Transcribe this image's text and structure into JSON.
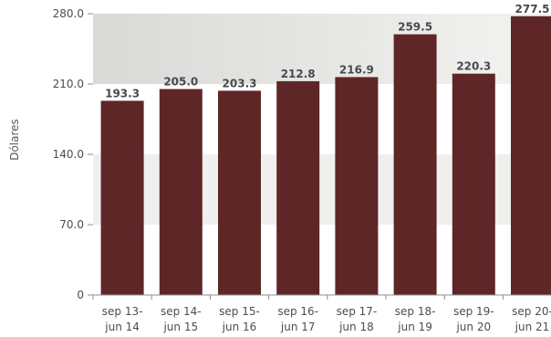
{
  "colors": {
    "bar": "#5f2628",
    "band_light": "#efefee",
    "band_gradient_start": "#d9d9d7",
    "band_gradient_end": "#f3f3f1",
    "axis": "#8c8c8c",
    "text": "#4d4d4d"
  },
  "chart_data": {
    "type": "bar",
    "title": "",
    "xlabel": "",
    "ylabel": "Dólares",
    "categories": [
      [
        "sep 13-",
        "jun 14"
      ],
      [
        "sep 14-",
        "jun 15"
      ],
      [
        "sep 15-",
        "jun 16"
      ],
      [
        "sep 16-",
        "jun 17"
      ],
      [
        "sep 17-",
        "jun 18"
      ],
      [
        "sep 18-",
        "jun 19"
      ],
      [
        "sep 19-",
        "jun 20"
      ],
      [
        "sep 20-",
        "jun 21"
      ]
    ],
    "values": [
      193.3,
      205.0,
      203.3,
      212.8,
      216.9,
      259.5,
      220.3,
      277.5
    ],
    "value_labels": [
      "193.3",
      "205.0",
      "203.3",
      "212.8",
      "216.9",
      "259.5",
      "220.3",
      "277.5"
    ],
    "ylim": [
      0,
      280
    ],
    "yticks": [
      0,
      70,
      140,
      210,
      280
    ],
    "ytick_labels": [
      "0",
      "70.0",
      "140.0",
      "210.0",
      "280.0"
    ],
    "grid": "alternating horizontal bands",
    "legend": "none"
  }
}
